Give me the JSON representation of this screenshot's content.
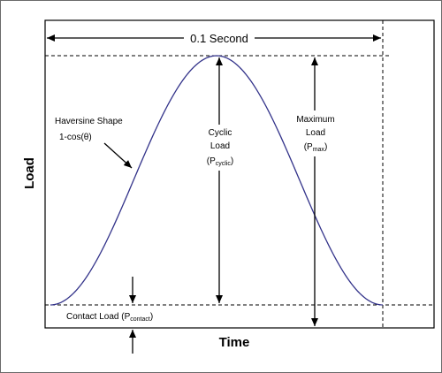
{
  "diagram": {
    "duration_label": "0.1 Second",
    "shape_label": {
      "line1": "Haversine Shape",
      "line2": "1-cos(θ)"
    },
    "cyclic_load": {
      "line1": "Cyclic",
      "line2": "Load",
      "open": "(P",
      "sub": "cyclic",
      "close": ")"
    },
    "maximum_load": {
      "line1": "Maximum",
      "line2": "Load",
      "open": "(P",
      "sub": "max",
      "close": ")"
    },
    "contact_load": {
      "text": "Contact Load (P",
      "sub": "contact",
      "close": ")"
    },
    "x_axis_label": "Time",
    "y_axis_label": "Load"
  },
  "colors": {
    "curve": "#33338a",
    "line": "#000000",
    "frame": "#6a6a6a"
  }
}
